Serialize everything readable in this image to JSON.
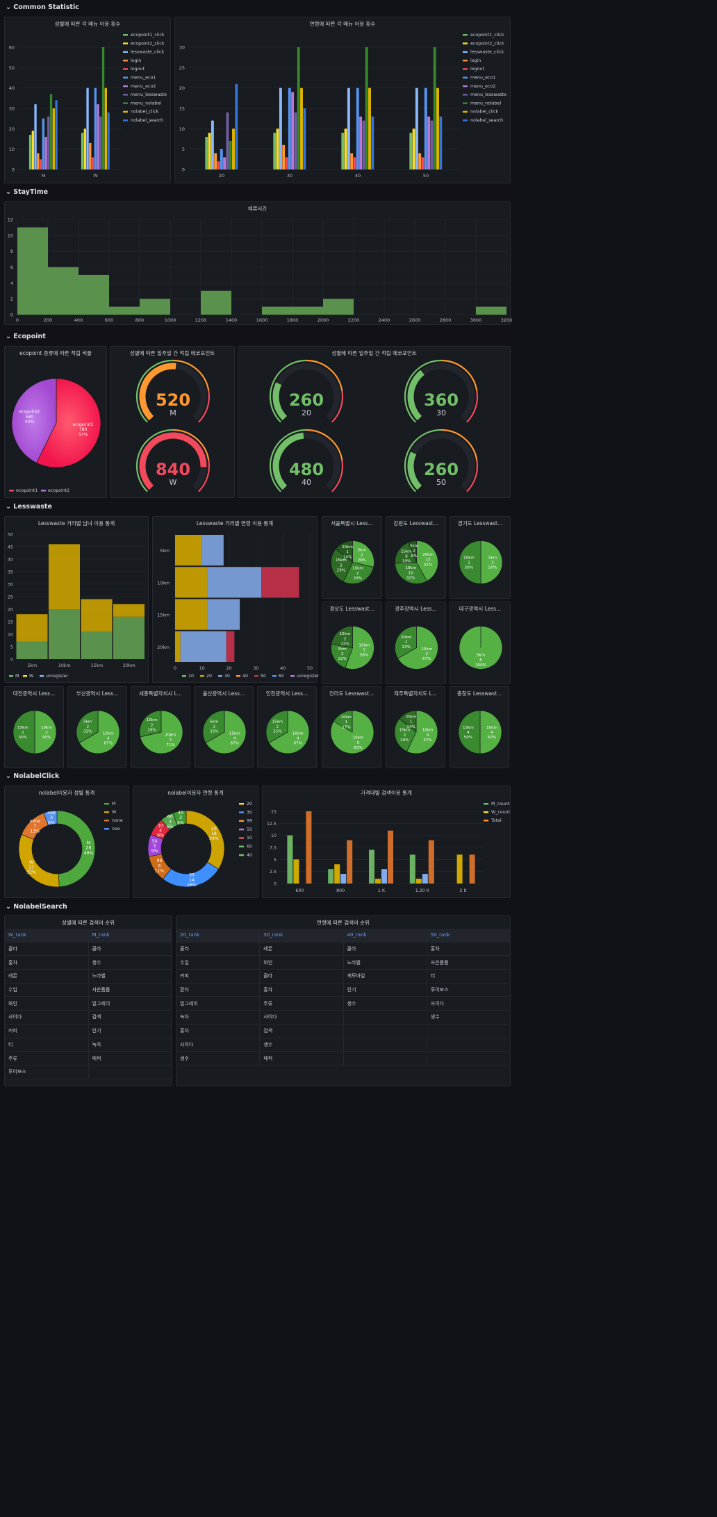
{
  "colors": {
    "ecopoint1_click": "#73bf69",
    "ecopoint2_click": "#fade2a",
    "lesswaste_click": "#8ab8ff",
    "login": "#ff9830",
    "logout": "#f2495c",
    "menu_eco1": "#5794f2",
    "menu_eco2": "#b877d9",
    "menu_lesswaste": "#705da0",
    "menu_nolabel": "#37872d",
    "nolabel_click": "#e0b400",
    "nolabel_search": "#3274d9"
  },
  "rows": {
    "common": "Common Statistic",
    "stay": "StayTime",
    "eco": "Ecopoint",
    "less": "Lesswaste",
    "nolabel": "NolabelClick",
    "search": "NolabelSearch"
  },
  "panels": {
    "gender_menu": "성별에 따른 각 메뉴 이용 횟수",
    "age_menu": "연령에 따른 각 메뉴 이용 횟수",
    "stay": "체류시간",
    "eco_pie": "ecopoint 종류에 따른 적립 비율",
    "eco_gender": "성별에 따른 일주일 간 적립 에코포인트",
    "eco_age": "성별에 따른 일주일 간 적립 에코포인트",
    "lw_gender": "Lesswaste 거리별 남녀 이용 통계",
    "lw_age": "Lesswaste 거리별 연령 이용 통계",
    "nl_gender": "nolabel이용자 성별 통계",
    "nl_age": "nolabel이용자 연령 통계",
    "nl_price": "가격대별 검색이용 통계",
    "search_gender": "성별에 따른 검색어 순위",
    "search_age": "연령에 따른 검색어 순위"
  },
  "chart_data": [
    {
      "id": "gender_menu",
      "type": "bar",
      "categories": [
        "M",
        "W"
      ],
      "ylim": [
        0,
        60
      ],
      "yticks": [
        0,
        10,
        20,
        30,
        40,
        50,
        60
      ],
      "series": [
        {
          "name": "ecopoint1_click",
          "values": [
            17,
            18
          ]
        },
        {
          "name": "ecopoint2_click",
          "values": [
            19,
            20
          ]
        },
        {
          "name": "lesswaste_click",
          "values": [
            32,
            40
          ]
        },
        {
          "name": "login",
          "values": [
            8,
            13
          ]
        },
        {
          "name": "logout",
          "values": [
            5,
            6
          ]
        },
        {
          "name": "menu_eco1",
          "values": [
            25,
            40
          ]
        },
        {
          "name": "menu_eco2",
          "values": [
            16,
            32
          ]
        },
        {
          "name": "menu_lesswaste",
          "values": [
            26,
            26
          ]
        },
        {
          "name": "menu_nolabel",
          "values": [
            37,
            60
          ]
        },
        {
          "name": "nolabel_click",
          "values": [
            30,
            40
          ]
        },
        {
          "name": "nolabel_search",
          "values": [
            34,
            28
          ]
        }
      ]
    },
    {
      "id": "age_menu",
      "type": "bar",
      "categories": [
        "20",
        "30",
        "40",
        "50"
      ],
      "ylim": [
        0,
        30
      ],
      "yticks": [
        0,
        5,
        10,
        15,
        20,
        25,
        30
      ],
      "series": [
        {
          "name": "ecopoint1_click",
          "values": [
            8,
            9,
            9,
            9
          ]
        },
        {
          "name": "ecopoint2_click",
          "values": [
            9,
            10,
            10,
            10
          ]
        },
        {
          "name": "lesswaste_click",
          "values": [
            12,
            20,
            20,
            20
          ]
        },
        {
          "name": "login",
          "values": [
            4,
            6,
            4,
            4
          ]
        },
        {
          "name": "logout",
          "values": [
            2,
            3,
            3,
            3
          ]
        },
        {
          "name": "menu_eco1",
          "values": [
            5,
            20,
            20,
            20
          ]
        },
        {
          "name": "menu_eco2",
          "values": [
            3,
            19,
            13,
            13
          ]
        },
        {
          "name": "menu_lesswaste",
          "values": [
            14,
            14,
            12,
            12
          ]
        },
        {
          "name": "menu_nolabel",
          "values": [
            7,
            30,
            30,
            30
          ]
        },
        {
          "name": "nolabel_click",
          "values": [
            10,
            20,
            20,
            20
          ]
        },
        {
          "name": "nolabel_search",
          "values": [
            21,
            15,
            13,
            13
          ]
        }
      ]
    },
    {
      "id": "stay",
      "type": "bar",
      "bins": [
        [
          0,
          200,
          11
        ],
        [
          200,
          400,
          6
        ],
        [
          400,
          600,
          5
        ],
        [
          600,
          800,
          1
        ],
        [
          800,
          1000,
          2
        ],
        [
          1000,
          1200,
          0
        ],
        [
          1200,
          1400,
          3
        ],
        [
          1400,
          1600,
          0
        ],
        [
          1600,
          1800,
          1
        ],
        [
          1800,
          2000,
          1
        ],
        [
          2000,
          2200,
          2
        ],
        [
          2200,
          2400,
          0
        ],
        [
          2400,
          2600,
          0
        ],
        [
          2600,
          2800,
          0
        ],
        [
          2800,
          3000,
          0
        ],
        [
          3000,
          3200,
          1
        ]
      ],
      "xlim": [
        0,
        3200
      ],
      "ylim": [
        0,
        12
      ],
      "xticks": [
        0,
        200,
        400,
        600,
        800,
        1000,
        1200,
        1400,
        1600,
        1800,
        2000,
        2200,
        2400,
        2600,
        2800,
        3000,
        3200
      ],
      "yticks": [
        0,
        2,
        4,
        6,
        8,
        10,
        12
      ]
    },
    {
      "id": "eco_pie",
      "type": "pie",
      "slices": [
        {
          "name": "ecopoint1",
          "value": 780,
          "pct": "57%"
        },
        {
          "name": "ecopoint2",
          "value": 580,
          "pct": "43%"
        }
      ],
      "legend": [
        "ecopoint1",
        "ecopoint2"
      ]
    },
    {
      "id": "gauges",
      "type": "gauge",
      "max": 1000,
      "items": [
        {
          "value": 520,
          "label": "M"
        },
        {
          "value": 840,
          "label": "W"
        },
        {
          "value": 260,
          "label": "20"
        },
        {
          "value": 360,
          "label": "30"
        },
        {
          "value": 480,
          "label": "40"
        },
        {
          "value": 260,
          "label": "50"
        }
      ]
    },
    {
      "id": "lw_gender",
      "type": "bar",
      "categories": [
        "5km",
        "10km",
        "15km",
        "20km"
      ],
      "ylim": [
        0,
        50
      ],
      "yticks": [
        0,
        5,
        10,
        15,
        20,
        25,
        30,
        35,
        40,
        45,
        50
      ],
      "series": [
        {
          "name": "M",
          "values": [
            7,
            20,
            11,
            17
          ]
        },
        {
          "name": "W",
          "values": [
            11,
            26,
            13,
            5
          ]
        },
        {
          "name": "unregister",
          "values": [
            0,
            0,
            0,
            0
          ]
        }
      ],
      "legend": [
        "M",
        "W",
        "unregister"
      ]
    },
    {
      "id": "lw_age",
      "type": "bar",
      "categories": [
        "5km",
        "10km",
        "15km",
        "20km"
      ],
      "xlim": [
        0,
        50
      ],
      "xticks": [
        0,
        10,
        20,
        30,
        40,
        50
      ],
      "series": [
        {
          "name": "10",
          "values": [
            0,
            0,
            0,
            0
          ]
        },
        {
          "name": "20",
          "values": [
            10,
            12,
            12,
            2
          ]
        },
        {
          "name": "30",
          "values": [
            8,
            20,
            12,
            17
          ]
        },
        {
          "name": "40",
          "values": [
            0,
            0,
            0,
            0
          ]
        },
        {
          "name": "50",
          "values": [
            0,
            14,
            0,
            3
          ]
        },
        {
          "name": "60",
          "values": [
            0,
            0,
            0,
            0
          ]
        },
        {
          "name": "unregister",
          "values": [
            0,
            0,
            0,
            0
          ]
        }
      ],
      "legend": [
        "10",
        "20",
        "30",
        "40",
        "50",
        "60",
        "unregister"
      ]
    },
    {
      "id": "lw_regions",
      "type": "pie",
      "items": [
        {
          "title": "서울특별시 Less...",
          "slices": [
            {
              "l": "5km",
              "v": 2,
              "p": "29%"
            },
            {
              "l": "10km",
              "v": 2,
              "p": "29%"
            },
            {
              "l": "15km",
              "v": 2,
              "p": "29%"
            },
            {
              "l": "20km",
              "v": 1,
              "p": "14%"
            }
          ]
        },
        {
          "title": "강원도 Lesswast...",
          "slices": [
            {
              "l": "20km",
              "v": 13,
              "p": "42%"
            },
            {
              "l": "10km",
              "v": 10,
              "p": "32%"
            },
            {
              "l": "15km",
              "v": 6,
              "p": "19%"
            },
            {
              "l": "5km",
              "v": 2,
              "p": "6%"
            }
          ]
        },
        {
          "title": "경기도 Lesswast...",
          "slices": [
            {
              "l": "5km",
              "v": 2,
              "p": "50%"
            },
            {
              "l": "10km",
              "v": 2,
              "p": "50%"
            }
          ]
        },
        {
          "title": "경상도 Lesswast...",
          "slices": [
            {
              "l": "10km",
              "v": 5,
              "p": "56%"
            },
            {
              "l": "5km",
              "v": 2,
              "p": "22%"
            },
            {
              "l": "15km",
              "v": 2,
              "p": "22%"
            }
          ]
        },
        {
          "title": "광주광역시 Less...",
          "slices": [
            {
              "l": "10km",
              "v": 2,
              "p": "67%"
            },
            {
              "l": "20km",
              "v": 1,
              "p": "33%"
            }
          ]
        },
        {
          "title": "대구광역시 Less...",
          "slices": [
            {
              "l": "5km",
              "v": 6,
              "p": "100%"
            }
          ]
        },
        {
          "title": "대전광역시 Less...",
          "slices": [
            {
              "l": "10km",
              "v": 2,
              "p": "50%"
            },
            {
              "l": "15km",
              "v": 2,
              "p": "50%"
            }
          ]
        },
        {
          "title": "부산광역시 Less...",
          "slices": [
            {
              "l": "10km",
              "v": 4,
              "p": "67%"
            },
            {
              "l": "5km",
              "v": 2,
              "p": "33%"
            }
          ]
        },
        {
          "title": "세종특별자치시 L...",
          "slices": [
            {
              "l": "20km",
              "v": 5,
              "p": "71%"
            },
            {
              "l": "10km",
              "v": 2,
              "p": "29%"
            }
          ]
        },
        {
          "title": "울산광역시 Less...",
          "slices": [
            {
              "l": "15km",
              "v": 4,
              "p": "67%"
            },
            {
              "l": "5km",
              "v": 2,
              "p": "33%"
            }
          ]
        },
        {
          "title": "인천광역시 Less...",
          "slices": [
            {
              "l": "10km",
              "v": 4,
              "p": "67%"
            },
            {
              "l": "15km",
              "v": 2,
              "p": "33%"
            }
          ]
        },
        {
          "title": "전라도 Lesswast...",
          "slices": [
            {
              "l": "10km",
              "v": 5,
              "p": "83%"
            },
            {
              "l": "20km",
              "v": 1,
              "p": "17%"
            }
          ]
        },
        {
          "title": "제주특별자치도 L...",
          "slices": [
            {
              "l": "10km",
              "v": 4,
              "p": "57%"
            },
            {
              "l": "15km",
              "v": 2,
              "p": "29%"
            },
            {
              "l": "20km",
              "v": 1,
              "p": "14%"
            }
          ]
        },
        {
          "title": "충청도 Lesswast...",
          "slices": [
            {
              "l": "10km",
              "v": 4,
              "p": "50%"
            },
            {
              "l": "15km",
              "v": 4,
              "p": "50%"
            }
          ]
        }
      ]
    },
    {
      "id": "nl_gender",
      "type": "pie",
      "donut": true,
      "slices": [
        {
          "name": "M",
          "value": 26,
          "pct": "49%"
        },
        {
          "name": "W",
          "value": 17,
          "pct": "32%"
        },
        {
          "name": "none",
          "value": 7,
          "pct": "13%"
        },
        {
          "name": "noe",
          "value": 3,
          "pct": "6%"
        }
      ],
      "legend": [
        "M",
        "W",
        "none",
        "noe"
      ]
    },
    {
      "id": "nl_age",
      "type": "pie",
      "donut": true,
      "slices": [
        {
          "name": "20",
          "value": 18,
          "pct": "34%"
        },
        {
          "name": "30",
          "value": 14,
          "pct": "26%"
        },
        {
          "name": "99",
          "value": 6,
          "pct": "11%"
        },
        {
          "name": "50",
          "value": 5,
          "pct": "9%"
        },
        {
          "name": "10",
          "value": 4,
          "pct": "8%"
        },
        {
          "name": "60",
          "value": 3,
          "pct": "6%"
        },
        {
          "name": "40",
          "value": 3,
          "pct": "6%"
        }
      ],
      "legend": [
        "20",
        "30",
        "99",
        "50",
        "10",
        "60",
        "40"
      ]
    },
    {
      "id": "nl_price",
      "type": "bar",
      "categories": [
        "600",
        "800",
        "1 K",
        "1.20 K",
        "2 K"
      ],
      "ylim": [
        0,
        15
      ],
      "yticks": [
        0,
        2.5,
        5,
        7.5,
        10,
        12.5,
        15
      ],
      "series": [
        {
          "name": "M_count",
          "values": [
            10,
            3,
            7,
            6,
            0
          ]
        },
        {
          "name": "W_count",
          "values": [
            5,
            4,
            1,
            1,
            6
          ]
        },
        {
          "name": "X",
          "values": [
            0,
            2,
            3,
            2,
            0
          ]
        },
        {
          "name": "Total",
          "values": [
            15,
            9,
            11,
            9,
            6
          ]
        }
      ],
      "legend": [
        "M_count",
        "W_count",
        "Total"
      ]
    }
  ],
  "search_gender": {
    "headers": [
      "W_rank",
      "M_rank"
    ],
    "rows": [
      [
        "콜라",
        "콜라"
      ],
      [
        "홍차",
        "생수"
      ],
      [
        "레몬",
        "노라벨"
      ],
      [
        "수입",
        "사은품품"
      ],
      [
        "와인",
        "얼그레이"
      ],
      [
        "사이다",
        "검색"
      ],
      [
        "커피",
        "인기"
      ],
      [
        "티",
        "녹차"
      ],
      [
        "주류",
        "페퍼"
      ],
      [
        "루이보스",
        ""
      ]
    ]
  },
  "search_age": {
    "headers": [
      "20_rank",
      "30_rank",
      "40_rank",
      "50_rank"
    ],
    "rows": [
      [
        "콜라",
        "레몬",
        "콜라",
        "홍차"
      ],
      [
        "수입",
        "와인",
        "노라벨",
        "사은품품"
      ],
      [
        "커피",
        "콜라",
        "캐모마일",
        "티"
      ],
      [
        "환타",
        "홍차",
        "인기",
        "루이보스"
      ],
      [
        "얼그레이",
        "주류",
        "생수",
        "사이다"
      ],
      [
        "녹차",
        "사이다",
        "",
        "생수"
      ],
      [
        "홍차",
        "검색",
        "",
        ""
      ],
      [
        "사이다",
        "생수",
        "",
        ""
      ],
      [
        "생수",
        "페퍼",
        "",
        ""
      ]
    ]
  }
}
